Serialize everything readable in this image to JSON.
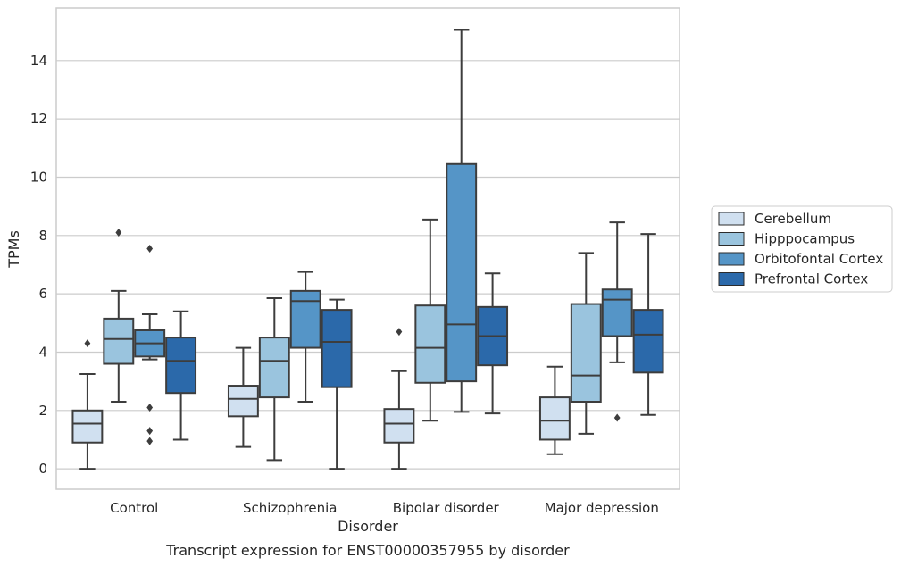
{
  "chart_data": {
    "type": "box",
    "caption": "Transcript expression for ENST00000357955 by disorder",
    "xlabel": "Disorder",
    "ylabel": "TPMs",
    "ylim": [
      -0.7,
      15.8
    ],
    "yticks": [
      0,
      2,
      4,
      6,
      8,
      10,
      12,
      14
    ],
    "grid": "horizontal",
    "legend_position": "right",
    "categories": [
      "Control",
      "Schizophrenia",
      "Bipolar disorder",
      "Major depression"
    ],
    "series": [
      {
        "name": "Cerebellum",
        "color": "#d0e0f0",
        "boxes": [
          {
            "whisker_low": 0.0,
            "q1": 0.9,
            "median": 1.55,
            "q3": 2.0,
            "whisker_high": 3.25,
            "outliers": [
              4.3
            ]
          },
          {
            "whisker_low": 0.75,
            "q1": 1.8,
            "median": 2.4,
            "q3": 2.85,
            "whisker_high": 4.15,
            "outliers": []
          },
          {
            "whisker_low": 0.0,
            "q1": 0.9,
            "median": 1.55,
            "q3": 2.05,
            "whisker_high": 3.35,
            "outliers": [
              4.7
            ]
          },
          {
            "whisker_low": 0.5,
            "q1": 1.0,
            "median": 1.65,
            "q3": 2.45,
            "whisker_high": 3.5,
            "outliers": []
          }
        ]
      },
      {
        "name": "Hipppocampus",
        "color": "#9ac4de",
        "boxes": [
          {
            "whisker_low": 2.3,
            "q1": 3.6,
            "median": 4.45,
            "q3": 5.15,
            "whisker_high": 6.1,
            "outliers": [
              8.1
            ]
          },
          {
            "whisker_low": 0.3,
            "q1": 2.45,
            "median": 3.7,
            "q3": 4.5,
            "whisker_high": 5.85,
            "outliers": []
          },
          {
            "whisker_low": 1.65,
            "q1": 2.95,
            "median": 4.15,
            "q3": 5.6,
            "whisker_high": 8.55,
            "outliers": []
          },
          {
            "whisker_low": 1.2,
            "q1": 2.3,
            "median": 3.2,
            "q3": 5.65,
            "whisker_high": 7.4,
            "outliers": []
          }
        ]
      },
      {
        "name": "Orbitofontal Cortex",
        "color": "#5595c7",
        "boxes": [
          {
            "whisker_low": 3.75,
            "q1": 3.85,
            "median": 4.3,
            "q3": 4.75,
            "whisker_high": 5.3,
            "outliers": [
              7.55,
              2.1,
              1.3,
              0.95
            ]
          },
          {
            "whisker_low": 2.3,
            "q1": 4.15,
            "median": 5.75,
            "q3": 6.1,
            "whisker_high": 6.75,
            "outliers": []
          },
          {
            "whisker_low": 1.95,
            "q1": 3.0,
            "median": 4.95,
            "q3": 10.45,
            "whisker_high": 15.05,
            "outliers": []
          },
          {
            "whisker_low": 3.65,
            "q1": 4.55,
            "median": 5.8,
            "q3": 6.15,
            "whisker_high": 8.45,
            "outliers": [
              1.75
            ]
          }
        ]
      },
      {
        "name": "Prefrontal Cortex",
        "color": "#2b69aa",
        "boxes": [
          {
            "whisker_low": 1.0,
            "q1": 2.6,
            "median": 3.7,
            "q3": 4.5,
            "whisker_high": 5.4,
            "outliers": []
          },
          {
            "whisker_low": 0.0,
            "q1": 2.8,
            "median": 4.35,
            "q3": 5.45,
            "whisker_high": 5.8,
            "outliers": []
          },
          {
            "whisker_low": 1.9,
            "q1": 3.55,
            "median": 4.55,
            "q3": 5.55,
            "whisker_high": 6.7,
            "outliers": []
          },
          {
            "whisker_low": 1.85,
            "q1": 3.3,
            "median": 4.6,
            "q3": 5.45,
            "whisker_high": 8.05,
            "outliers": []
          }
        ]
      }
    ]
  },
  "colors": {
    "line": "#3d3d3d",
    "grid": "#cccccc",
    "frame": "#cccccc"
  }
}
